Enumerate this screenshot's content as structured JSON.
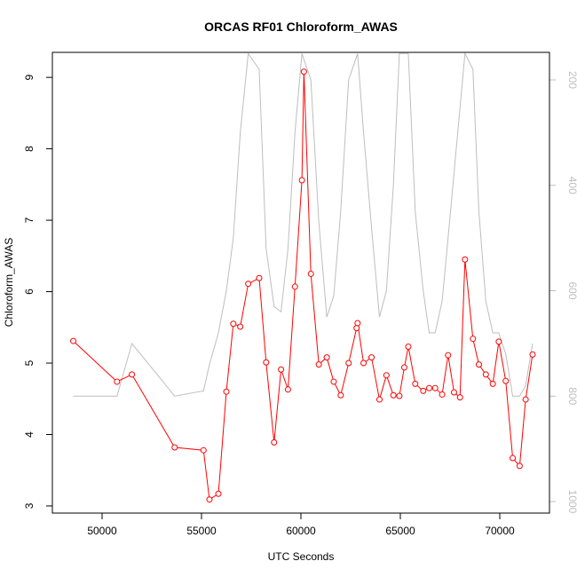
{
  "chart_data": {
    "type": "line",
    "title": "ORCAS RF01 Chloroform_AWAS",
    "xlabel": "UTC Seconds",
    "ylabel": "Chloroform_AWAS",
    "xlim": [
      47500,
      72500
    ],
    "ylim": [
      2.9,
      9.35
    ],
    "x_ticks": [
      50000,
      55000,
      60000,
      65000,
      70000
    ],
    "y_ticks": [
      3,
      4,
      5,
      6,
      7,
      8,
      9
    ],
    "y2_ticks": [
      200,
      400,
      600,
      800,
      1000
    ],
    "y2_reversed": true,
    "grid": false,
    "series": [
      {
        "color": "#ff0000",
        "marker": "open-circle",
        "x": [
          48550,
          50750,
          51500,
          53650,
          55100,
          55400,
          55850,
          56250,
          56600,
          56950,
          57350,
          57900,
          58250,
          58650,
          59000,
          59350,
          59700,
          60050,
          60150,
          60500,
          60900,
          61300,
          61650,
          62000,
          62400,
          62800,
          62850,
          63150,
          63550,
          63950,
          64300,
          64650,
          64950,
          65200,
          65400,
          65750,
          66150,
          66450,
          66750,
          67100,
          67400,
          67700,
          68000,
          68250,
          68650,
          68950,
          69300,
          69650,
          69950,
          70300,
          70650,
          71000,
          71300,
          71650
        ],
        "y": [
          5.31,
          4.74,
          4.84,
          3.82,
          3.78,
          3.09,
          3.17,
          4.6,
          5.55,
          5.51,
          6.11,
          6.19,
          5.01,
          3.89,
          4.91,
          4.63,
          6.07,
          7.56,
          9.08,
          6.25,
          4.98,
          5.08,
          4.74,
          4.55,
          5.0,
          5.49,
          5.56,
          5.0,
          5.08,
          4.49,
          4.83,
          4.55,
          4.54,
          4.94,
          5.23,
          4.71,
          4.61,
          4.65,
          4.65,
          4.56,
          5.11,
          4.59,
          4.52,
          6.45,
          5.34,
          4.98,
          4.84,
          4.71,
          5.3,
          4.75,
          3.67,
          3.56,
          4.49,
          5.12
        ]
      },
      {
        "color": "#bebebe",
        "axis": "right",
        "x": [
          48550,
          50750,
          51500,
          53650,
          55100,
          55400,
          55850,
          56250,
          56600,
          56950,
          57350,
          57900,
          58250,
          58650,
          59000,
          59350,
          59700,
          60050,
          60500,
          60900,
          61300,
          61650,
          62000,
          62400,
          62850,
          63150,
          63550,
          63950,
          64300,
          64650,
          64950,
          65400,
          65750,
          66150,
          66450,
          66750,
          67100,
          67400,
          68250,
          68650,
          68950,
          69300,
          69650,
          69950,
          70300,
          70650,
          71000,
          71300,
          71650
        ],
        "y": [
          800,
          800,
          700,
          800,
          790,
          740,
          680,
          600,
          500,
          300,
          150,
          180,
          520,
          630,
          640,
          520,
          300,
          150,
          200,
          470,
          650,
          610,
          450,
          200,
          150,
          300,
          480,
          650,
          600,
          400,
          150,
          150,
          450,
          600,
          680,
          680,
          620,
          500,
          150,
          180,
          450,
          620,
          680,
          680,
          720,
          800,
          800,
          780,
          700
        ]
      }
    ]
  }
}
